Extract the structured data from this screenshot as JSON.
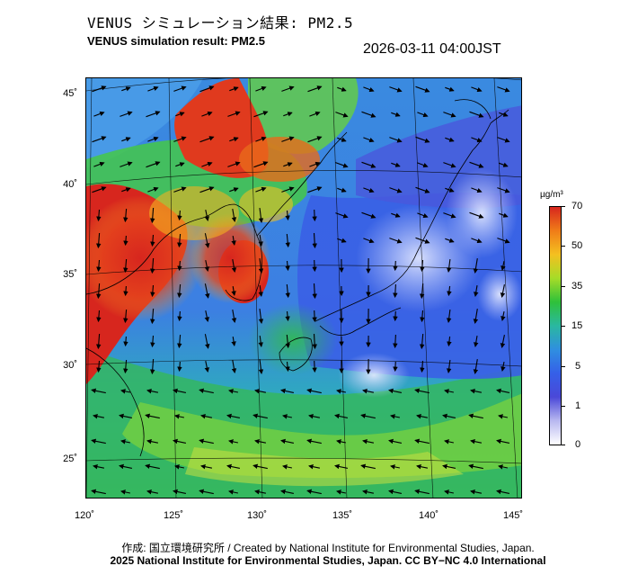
{
  "header": {
    "title_jp": "VENUS シミュレーション結果: PM2.5",
    "title_en": "VENUS simulation result: PM2.5",
    "timestamp": "2026-03-11 04:00JST"
  },
  "map": {
    "lat_labels": [
      "45˚",
      "40˚",
      "35˚",
      "30˚",
      "25˚"
    ],
    "lon_labels": [
      "120˚",
      "125˚",
      "130˚",
      "135˚",
      "140˚",
      "145˚"
    ]
  },
  "colorbar": {
    "unit": "µg/m³",
    "ticks": [
      "70",
      "50",
      "35",
      "15",
      "5",
      "1",
      "0"
    ],
    "colors": [
      "#d7261e",
      "#f07c18",
      "#f4c020",
      "#a6dc28",
      "#2fc13a",
      "#2ab8a0",
      "#2f8fe0",
      "#3560e8",
      "#4a48d8",
      "#b8b8f0",
      "#ffffff"
    ]
  },
  "footer": {
    "credit": "作成: 国立環境研究所 / Created by National Institute for Environmental Studies, Japan.",
    "copyright": "2025 National Institute for Environmental Studies, Japan. CC BY−NC 4.0 International"
  }
}
